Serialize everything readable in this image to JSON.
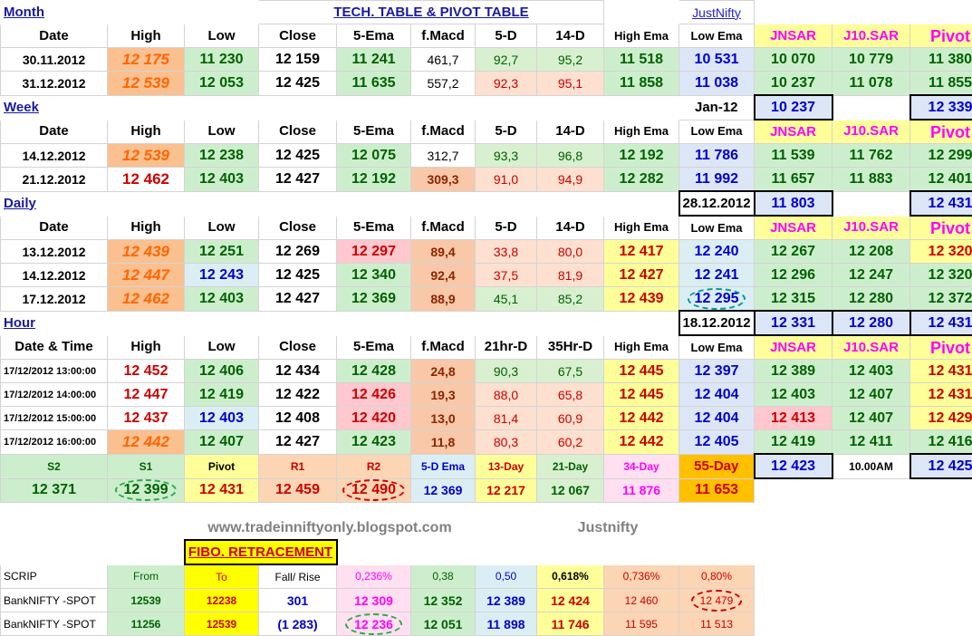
{
  "month": {
    "section": "Month",
    "title": "TECH. TABLE  &  PIVOT TABLE",
    "link": "JustNifty",
    "headers": [
      "Date",
      "High",
      "Low",
      "Close",
      "5-Ema",
      "f.Macd",
      "5-D",
      "14-D",
      "High Ema",
      "Low Ema",
      "JNSAR",
      "J10.SAR",
      "Pivot"
    ],
    "rows": [
      [
        "30.11.2012",
        "12 175",
        "11 230",
        "12 159",
        "11 241",
        "461,7",
        "92,7",
        "95,2",
        "11 518",
        "10 531",
        "10 070",
        "10 779",
        "11 380"
      ],
      [
        "31.12.2012",
        "12 539",
        "12 053",
        "12 425",
        "11 635",
        "557,2",
        "92,3",
        "95,1",
        "11 858",
        "11 038",
        "10 237",
        "11 078",
        "11 855"
      ]
    ]
  },
  "week": {
    "section": "Week",
    "period": "Jan-12",
    "jnsar_box": "10 237",
    "pivot_box": "12 339",
    "headers": [
      "Date",
      "High",
      "Low",
      "Close",
      "5-Ema",
      "f.Macd",
      "5-D",
      "14-D",
      "High Ema",
      "Low Ema",
      "JNSAR",
      "J10.SAR",
      "Pivot"
    ],
    "rows": [
      [
        "14.12.2012",
        "12 539",
        "12 238",
        "12 425",
        "12 075",
        "312,7",
        "93,3",
        "96,8",
        "12 192",
        "11 786",
        "11 539",
        "11 762",
        "12 299"
      ],
      [
        "21.12.2012",
        "12 462",
        "12 403",
        "12 427",
        "12 192",
        "309,3",
        "91,0",
        "94,9",
        "12 282",
        "11 992",
        "11 657",
        "11 883",
        "12 401"
      ]
    ]
  },
  "daily": {
    "section": "Daily",
    "period": "28.12.2012",
    "jnsar_box": "11 803",
    "pivot_box": "12 431",
    "headers": [
      "Date",
      "High",
      "Low",
      "Close",
      "5-Ema",
      "f.Macd",
      "5-D",
      "14-D",
      "High Ema",
      "Low Ema",
      "JNSAR",
      "J10.SAR",
      "Pivot"
    ],
    "rows": [
      [
        "13.12.2012",
        "12 439",
        "12 251",
        "12 269",
        "12 297",
        "89,4",
        "33,8",
        "80,0",
        "12 417",
        "12 240",
        "12 267",
        "12 208",
        "12 320"
      ],
      [
        "14.12.2012",
        "12 447",
        "12 243",
        "12 425",
        "12 340",
        "92,4",
        "37,5",
        "81,9",
        "12 427",
        "12 241",
        "12 296",
        "12 247",
        "12 320"
      ],
      [
        "17.12.2012",
        "12 462",
        "12 403",
        "12 427",
        "12 369",
        "88,9",
        "45,1",
        "85,2",
        "12 439",
        "12 295",
        "12 315",
        "12 280",
        "12 372"
      ]
    ]
  },
  "hour": {
    "section": "Hour",
    "period": "18.12.2012",
    "jnsar_box": "12 331",
    "j10_box": "12 280",
    "pivot_box": "12 431",
    "headers": [
      "Date & Time",
      "High",
      "Low",
      "Close",
      "5-Ema",
      "f.Macd",
      "21hr-D",
      "35Hr-D",
      "High Ema",
      "Low Ema",
      "JNSAR",
      "J10.SAR",
      "Pivot"
    ],
    "rows": [
      [
        "17/12/2012 13:00:00",
        "12 452",
        "12 406",
        "12 434",
        "12 428",
        "24,8",
        "90,3",
        "67,5",
        "12 445",
        "12 397",
        "12 389",
        "12 403",
        "12 431"
      ],
      [
        "17/12/2012 14:00:00",
        "12 447",
        "12 419",
        "12 422",
        "12 426",
        "19,3",
        "88,0",
        "65,8",
        "12 445",
        "12 404",
        "12 403",
        "12 407",
        "12 431"
      ],
      [
        "17/12/2012 15:00:00",
        "12 437",
        "12 403",
        "12 408",
        "12 420",
        "13,0",
        "81,4",
        "60,9",
        "12 442",
        "12 404",
        "12 413",
        "12 407",
        "12 429"
      ],
      [
        "17/12/2012 16:00:00",
        "12 442",
        "12 407",
        "12 427",
        "12 423",
        "11,8",
        "80,3",
        "60,2",
        "12 442",
        "12 405",
        "12 419",
        "12 411",
        "12 416"
      ]
    ]
  },
  "levels": {
    "labels": [
      "S2",
      "S1",
      "Pivot",
      "R1",
      "R2",
      "5-D Ema",
      "13-Day",
      "21-Day",
      "34-Day",
      "55-Day"
    ],
    "values": [
      "12 371",
      "12 399",
      "12 431",
      "12 459",
      "12 490",
      "12 369",
      "12 217",
      "12 067",
      "11 876",
      "11 653"
    ],
    "box_value": "12 423",
    "time": "10.00AM",
    "box_value2": "12 425"
  },
  "footer": {
    "blog": "www.tradeinniftyonly.blogspot.com",
    "brand": "Justnifty"
  },
  "fibo": {
    "title": "FIBO. RETRACEMENT",
    "headers": [
      "SCRIP",
      "From",
      "To",
      "Fall/ Rise",
      "0,236%",
      "0,38",
      "0,50",
      "0,618%",
      "0,736%",
      "0,80%"
    ],
    "rows": [
      [
        "BankNIFTY -SPOT",
        "12539",
        "12238",
        "301",
        "12 309",
        "12 352",
        "12 389",
        "12 424",
        "12 460",
        "12 479"
      ],
      [
        "BankNIFTY -SPOT",
        "11256",
        "12539",
        "(1 283)",
        "12 236",
        "12 051",
        "11 898",
        "11 746",
        "11 595",
        "11 513"
      ]
    ]
  }
}
